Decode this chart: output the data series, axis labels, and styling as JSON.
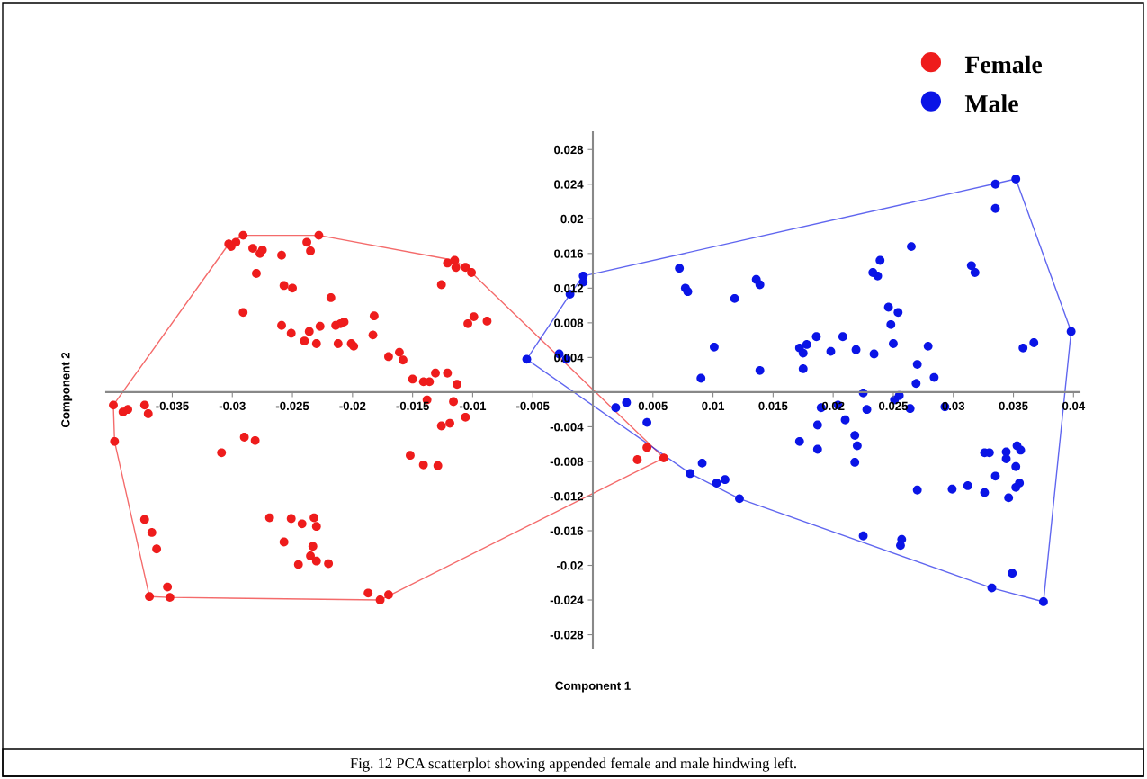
{
  "chart_data": {
    "type": "scatter",
    "xlabel": "Component 1",
    "ylabel": "Component 2",
    "xlim": [
      -0.0405,
      0.0405
    ],
    "ylim": [
      -0.0295,
      0.03
    ],
    "xticks": [
      -0.035,
      -0.03,
      -0.025,
      -0.02,
      -0.015,
      -0.01,
      -0.005,
      0.005,
      0.01,
      0.015,
      0.02,
      0.025,
      0.03,
      0.035,
      0.04
    ],
    "yticks": [
      -0.028,
      -0.024,
      -0.02,
      -0.016,
      -0.012,
      -0.008,
      -0.004,
      0.004,
      0.008,
      0.012,
      0.016,
      0.02,
      0.024,
      0.028
    ],
    "grid": false,
    "legend": "top right",
    "marker": "circle",
    "series": [
      {
        "name": "Female",
        "color": "#ee1c1c",
        "x": [
          -0.0303,
          -0.0297,
          -0.0291,
          -0.0301,
          -0.0283,
          -0.0275,
          -0.0277,
          -0.0259,
          -0.0238,
          -0.0235,
          -0.0228,
          -0.028,
          -0.0257,
          -0.025,
          -0.0218,
          -0.0291,
          -0.0259,
          -0.0251,
          -0.0236,
          -0.0227,
          -0.0214,
          -0.021,
          -0.0207,
          -0.024,
          -0.023,
          -0.0212,
          -0.0201,
          -0.0199,
          -0.0182,
          -0.0183,
          -0.017,
          -0.0161,
          -0.0158,
          -0.015,
          -0.0141,
          -0.0136,
          -0.0131,
          -0.0121,
          -0.0113,
          -0.0126,
          -0.0121,
          -0.0115,
          -0.0114,
          -0.0106,
          -0.0101,
          -0.0104,
          -0.0099,
          -0.0088,
          -0.0399,
          -0.0391,
          -0.0387,
          -0.0373,
          -0.037,
          -0.0138,
          -0.0116,
          -0.0106,
          -0.0126,
          -0.0119,
          -0.0398,
          -0.0309,
          -0.029,
          -0.0281,
          -0.0152,
          -0.0141,
          -0.0129,
          -0.0373,
          -0.0367,
          -0.0363,
          -0.0369,
          -0.0354,
          -0.0352,
          -0.0269,
          -0.0251,
          -0.0242,
          -0.0232,
          -0.023,
          -0.0257,
          -0.0233,
          -0.0235,
          -0.023,
          -0.0245,
          -0.022,
          -0.0187,
          -0.0177,
          -0.017,
          0.0037,
          0.0045,
          0.0059
        ],
        "values": [
          0.0171,
          0.0173,
          0.0181,
          0.0168,
          0.0166,
          0.0164,
          0.016,
          0.0158,
          0.0173,
          0.0163,
          0.0181,
          0.0137,
          0.0123,
          0.012,
          0.0109,
          0.0092,
          0.0077,
          0.0068,
          0.007,
          0.0076,
          0.0077,
          0.0079,
          0.0081,
          0.0059,
          0.0056,
          0.0056,
          0.0056,
          0.0053,
          0.0088,
          0.0066,
          0.0041,
          0.0046,
          0.0037,
          0.0015,
          0.0012,
          0.0012,
          0.0022,
          0.0022,
          0.0009,
          0.0124,
          0.0149,
          0.0152,
          0.0144,
          0.0144,
          0.0138,
          0.0079,
          0.0087,
          0.0082,
          -0.0015,
          -0.0023,
          -0.002,
          -0.0015,
          -0.0025,
          -0.0009,
          -0.0011,
          -0.0029,
          -0.0039,
          -0.0036,
          -0.0057,
          -0.007,
          -0.0052,
          -0.0056,
          -0.0073,
          -0.0084,
          -0.0085,
          -0.0147,
          -0.0162,
          -0.0181,
          -0.0236,
          -0.0225,
          -0.0237,
          -0.0145,
          -0.0146,
          -0.0152,
          -0.0145,
          -0.0155,
          -0.0173,
          -0.0178,
          -0.0189,
          -0.0195,
          -0.0199,
          -0.0198,
          -0.0232,
          -0.024,
          -0.0234,
          -0.0078,
          -0.0064,
          -0.0076
        ]
      },
      {
        "name": "Male",
        "color": "#0a14e6",
        "x": [
          -0.0008,
          -0.0008,
          -0.0019,
          -0.0028,
          -0.0022,
          -0.0055,
          0.0072,
          0.0077,
          0.0079,
          0.0118,
          0.0136,
          0.0139,
          0.0101,
          0.009,
          0.0139,
          0.0172,
          0.0178,
          0.0175,
          0.0175,
          0.0186,
          0.0198,
          0.0208,
          0.0219,
          0.0234,
          0.0233,
          0.0237,
          0.0239,
          0.0265,
          0.0246,
          0.0254,
          0.0248,
          0.025,
          0.027,
          0.0279,
          0.0284,
          0.0269,
          0.0315,
          0.0318,
          0.0358,
          0.0367,
          0.0398,
          0.0019,
          0.0028,
          0.0045,
          0.019,
          0.0204,
          0.0225,
          0.0228,
          0.0255,
          0.0251,
          0.0264,
          0.0293,
          0.0187,
          0.021,
          0.0172,
          0.0187,
          0.0218,
          0.022,
          0.0218,
          0.0091,
          0.0081,
          0.0103,
          0.011,
          0.0122,
          0.0225,
          0.0257,
          0.0256,
          0.027,
          0.0299,
          0.0312,
          0.0326,
          0.0326,
          0.033,
          0.0344,
          0.0344,
          0.0353,
          0.0356,
          0.0352,
          0.0335,
          0.0355,
          0.0352,
          0.0346,
          0.0349,
          0.0332,
          0.0375,
          0.0335,
          0.0352,
          0.0335
        ],
        "values": [
          0.0134,
          0.0127,
          0.0113,
          0.0044,
          0.0038,
          0.0038,
          0.0143,
          0.012,
          0.0116,
          0.0108,
          0.013,
          0.0124,
          0.0052,
          0.0016,
          0.0025,
          0.0051,
          0.0055,
          0.0045,
          0.0027,
          0.0064,
          0.0047,
          0.0064,
          0.0049,
          0.0044,
          0.0138,
          0.0134,
          0.0152,
          0.0168,
          0.0098,
          0.0092,
          0.0078,
          0.0056,
          0.0032,
          0.0053,
          0.0017,
          0.001,
          0.0146,
          0.0138,
          0.0051,
          0.0057,
          0.007,
          -0.0018,
          -0.0012,
          -0.0035,
          -0.0018,
          -0.0015,
          -0.0001,
          -0.002,
          -0.0004,
          -0.0009,
          -0.0019,
          -0.0017,
          -0.0038,
          -0.0032,
          -0.0057,
          -0.0066,
          -0.005,
          -0.0062,
          -0.0081,
          -0.0082,
          -0.0094,
          -0.0105,
          -0.0101,
          -0.0123,
          -0.0166,
          -0.017,
          -0.0177,
          -0.0113,
          -0.0112,
          -0.0108,
          -0.0116,
          -0.007,
          -0.007,
          -0.0069,
          -0.0077,
          -0.0062,
          -0.0067,
          -0.0086,
          -0.0097,
          -0.0105,
          -0.011,
          -0.0122,
          -0.0209,
          -0.0226,
          -0.0242,
          0.024,
          0.0246,
          0.0212
        ]
      }
    ],
    "annotations": [
      "Fig. 12 PCA scatterplot showing appended female and male hindwing left."
    ]
  }
}
